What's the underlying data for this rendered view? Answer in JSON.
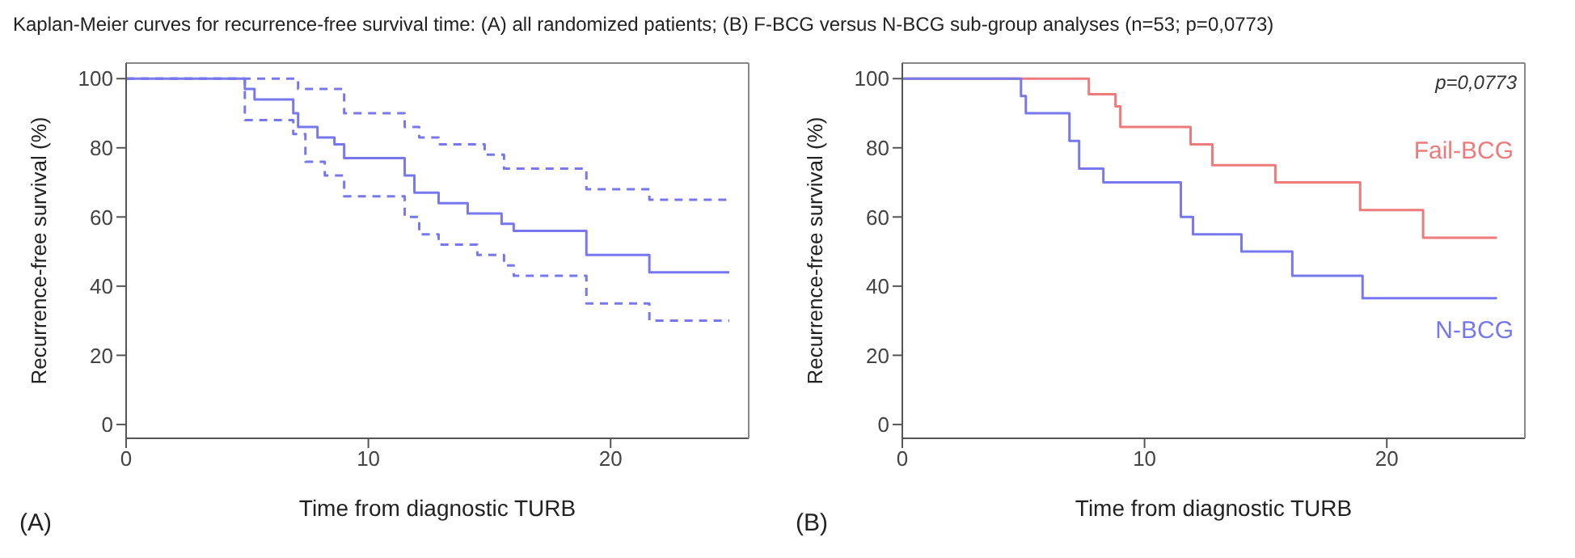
{
  "chart_data": [
    {
      "type": "step",
      "title": "Kaplan-Meier curves for recurrence-free survival time: (A) all randomized patients; (B) F-BCG versus N-BCG sub-group analyses (n=53; p=0,0773)",
      "xlabel": "Time from diagnostic TURB",
      "ylabel": "Recurrence-free survival (%)",
      "annotations": [
        "(A)"
      ],
      "xlim": [
        0,
        25.7
      ],
      "ylim": [
        -4,
        104.5
      ],
      "xticks": [
        0,
        10,
        20
      ],
      "yticks": [
        0,
        20,
        40,
        60,
        80,
        100
      ],
      "marker": "none",
      "series": [
        {
          "color": "#7878ee",
          "line_style": "solid",
          "x": [
            0,
            4.9,
            5.3,
            6.9,
            7.1,
            7.9,
            8.6,
            9.0,
            11.5,
            11.9,
            12.9,
            14.1,
            15.5,
            16.0,
            19.0,
            21.6,
            24.9
          ],
          "values": [
            100,
            97,
            94,
            90,
            86,
            83,
            81,
            77,
            72,
            67,
            64,
            61,
            58,
            56,
            49,
            44,
            44
          ]
        },
        {
          "color": "#7878ee",
          "line_style": "dashed",
          "x": [
            0,
            7.1,
            9.0,
            11.5,
            12.1,
            12.9,
            14.8,
            15.6,
            19.0,
            21.6,
            24.9
          ],
          "values": [
            100,
            97,
            90,
            86,
            83,
            81,
            78,
            74,
            68,
            65,
            65
          ]
        },
        {
          "color": "#7878ee",
          "line_style": "dashed",
          "x": [
            0,
            4.9,
            6.9,
            7.4,
            8.2,
            9.0,
            11.5,
            12.1,
            12.9,
            14.5,
            15.6,
            16.0,
            19.0,
            21.6,
            24.9
          ],
          "values": [
            100,
            88,
            84,
            76,
            72,
            66,
            60,
            55,
            52,
            49,
            46,
            43,
            35,
            30,
            30
          ]
        }
      ]
    },
    {
      "type": "step",
      "xlabel": "Time from diagnostic TURB",
      "ylabel": "Recurrence-free survival (%)",
      "annotations": [
        "(B)",
        "p=0,0773"
      ],
      "xlim": [
        0,
        25.7
      ],
      "ylim": [
        -4,
        104.5
      ],
      "xticks": [
        0,
        10,
        20
      ],
      "yticks": [
        0,
        20,
        40,
        60,
        80,
        100
      ],
      "marker": "none",
      "series": [
        {
          "name": "Fail-BCG",
          "color": "#ee7b7b",
          "line_style": "solid",
          "x": [
            0,
            7.7,
            8.8,
            9.0,
            11.9,
            12.8,
            15.4,
            18.9,
            21.5,
            24.55
          ],
          "values": [
            100,
            95.5,
            92,
            86,
            81,
            75,
            70,
            62,
            54,
            54
          ]
        },
        {
          "name": "N-BCG",
          "color": "#7878ee",
          "line_style": "solid",
          "x": [
            0,
            4.9,
            5.1,
            6.9,
            7.3,
            8.3,
            11.5,
            12.0,
            14.0,
            16.1,
            19.0,
            24.55
          ],
          "values": [
            100,
            95,
            90,
            82,
            74,
            70,
            60,
            55,
            50,
            43,
            36.5,
            36.5
          ]
        }
      ]
    }
  ]
}
